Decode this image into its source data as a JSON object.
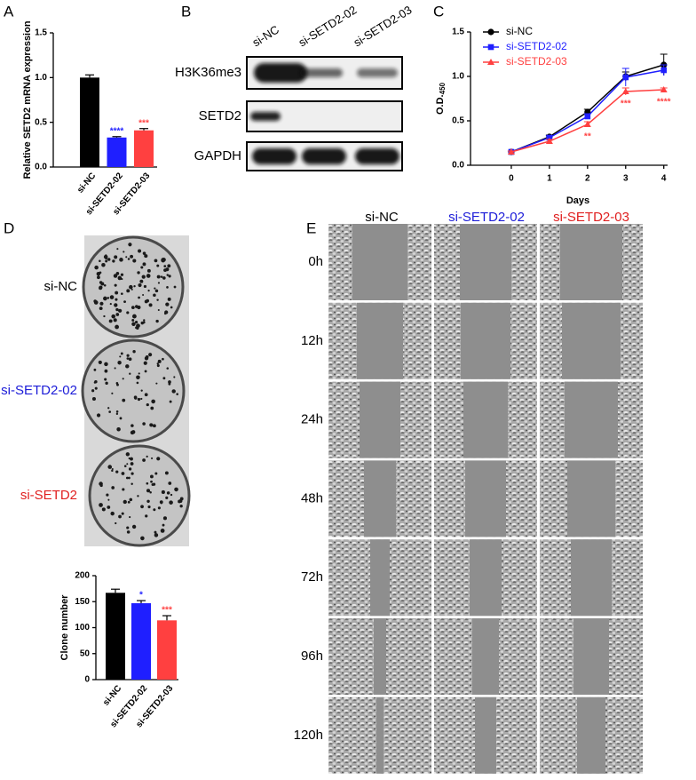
{
  "panels": [
    "A",
    "B",
    "C",
    "D",
    "E"
  ],
  "chart_data": [
    {
      "type": "bar",
      "ylabel": "Relative SETD2 mRNA expression",
      "categories": [
        "si-NC",
        "si-SETD2-02",
        "si-SETD2-03"
      ],
      "values": [
        1.0,
        0.33,
        0.41
      ],
      "errors": [
        0.03,
        0.01,
        0.02
      ],
      "colors": [
        "#000000",
        "#1f1fff",
        "#ff4040"
      ],
      "significance": [
        null,
        "****",
        "***"
      ],
      "ylim": [
        0,
        1.5
      ],
      "yticks": [
        {
          "value": 0,
          "label": "0.0"
        },
        0.5,
        {
          "value": 1,
          "label": "1.0"
        },
        1.5
      ]
    },
    {
      "type": "line",
      "xlabel": "Days",
      "ylabel": "O.D.",
      "ylabel_sub": "450",
      "x": [
        0,
        1,
        2,
        3,
        4
      ],
      "xlim": [
        -1.07,
        4.1
      ],
      "xticks": [
        0,
        1,
        2,
        3,
        4
      ],
      "ylim": [
        0,
        1.5
      ],
      "yticks": [
        {
          "value": 0,
          "label": "0.0"
        },
        0.5,
        {
          "value": 1,
          "label": "1.0"
        },
        1.5
      ],
      "legend": "upper left",
      "series": [
        {
          "name": "si-NC",
          "color": "#000000",
          "marker": "circle",
          "values": [
            0.15,
            0.32,
            0.6,
            1.0,
            1.13
          ],
          "errors": [
            0.01,
            0.02,
            0.03,
            0.05,
            0.12
          ]
        },
        {
          "name": "si-SETD2-02",
          "color": "#1f1fff",
          "marker": "square",
          "values": [
            0.15,
            0.31,
            0.55,
            0.99,
            1.07
          ],
          "errors": [
            0.01,
            0.02,
            0.03,
            0.1,
            0.06
          ]
        },
        {
          "name": "si-SETD2-03",
          "color": "#ff4040",
          "marker": "triangle",
          "values": [
            0.15,
            0.27,
            0.46,
            0.83,
            0.85
          ],
          "errors": [
            0.01,
            0.02,
            0.03,
            0.04,
            0.02
          ],
          "significance": [
            null,
            null,
            "**",
            "***",
            "****"
          ]
        }
      ]
    },
    {
      "type": "bar",
      "ylabel": "Clone number",
      "categories": [
        "si-NC",
        "si-SETD2-02",
        "si-SETD2-03"
      ],
      "values": [
        167,
        147,
        114
      ],
      "errors": [
        7,
        5,
        9
      ],
      "colors": [
        "#000000",
        "#1f1fff",
        "#ff4040"
      ],
      "significance": [
        null,
        "*",
        "***"
      ],
      "ylim": [
        0,
        200
      ],
      "yticks": [
        0,
        50,
        100,
        150,
        200
      ]
    }
  ],
  "blot": {
    "lanes": [
      "si-NC",
      "si-SETD2-02",
      "si-SETD2-03"
    ],
    "rows": [
      "H3K36me3",
      "SETD2",
      "GAPDH"
    ]
  },
  "colony": {
    "rows": [
      "si-NC",
      "si-SETD2-02",
      "si-SETD2"
    ]
  },
  "scratch": {
    "columns": [
      "si-NC",
      "si-SETD2-02",
      "si-SETD2-03"
    ],
    "times": [
      "0h",
      "12h",
      "24h",
      "48h",
      "72h",
      "96h",
      "120h"
    ]
  }
}
